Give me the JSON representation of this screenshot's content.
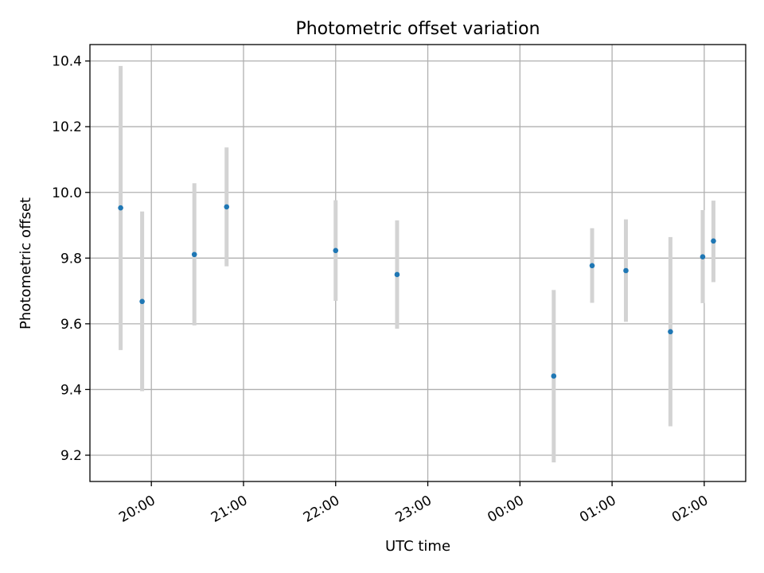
{
  "chart_data": {
    "type": "scatter",
    "title": "Photometric offset variation",
    "xlabel": "UTC time",
    "ylabel": "Photometric offset",
    "grid": true,
    "colors": {
      "point": "#1f77b4",
      "errorbar": "#d3d3d3",
      "grid": "#b0b0b0"
    },
    "x_tick_labels": [
      "20:00",
      "21:00",
      "22:00",
      "23:00",
      "00:00",
      "01:00",
      "02:00"
    ],
    "y_tick_labels": [
      "9.2",
      "9.4",
      "9.6",
      "9.8",
      "10.0",
      "10.2",
      "10.4"
    ],
    "xlim": [
      "19:20",
      "02:27"
    ],
    "ylim": [
      9.12,
      10.45
    ],
    "points": [
      {
        "x": "19:40",
        "y": 9.953,
        "ylow": 9.52,
        "yhigh": 10.385
      },
      {
        "x": "19:54",
        "y": 9.668,
        "ylow": 9.395,
        "yhigh": 9.942
      },
      {
        "x": "20:28",
        "y": 9.811,
        "ylow": 9.595,
        "yhigh": 10.028
      },
      {
        "x": "20:49",
        "y": 9.956,
        "ylow": 9.775,
        "yhigh": 10.137
      },
      {
        "x": "22:00",
        "y": 9.823,
        "ylow": 9.67,
        "yhigh": 9.976
      },
      {
        "x": "22:40",
        "y": 9.75,
        "ylow": 9.585,
        "yhigh": 9.915
      },
      {
        "x": "00:22",
        "y": 9.441,
        "ylow": 9.178,
        "yhigh": 9.703
      },
      {
        "x": "00:47",
        "y": 9.777,
        "ylow": 9.664,
        "yhigh": 9.891
      },
      {
        "x": "01:09",
        "y": 9.762,
        "ylow": 9.606,
        "yhigh": 9.918
      },
      {
        "x": "01:38",
        "y": 9.576,
        "ylow": 9.288,
        "yhigh": 9.864
      },
      {
        "x": "01:59",
        "y": 9.804,
        "ylow": 9.663,
        "yhigh": 9.946
      },
      {
        "x": "02:06",
        "y": 9.852,
        "ylow": 9.727,
        "yhigh": 9.975
      }
    ]
  }
}
